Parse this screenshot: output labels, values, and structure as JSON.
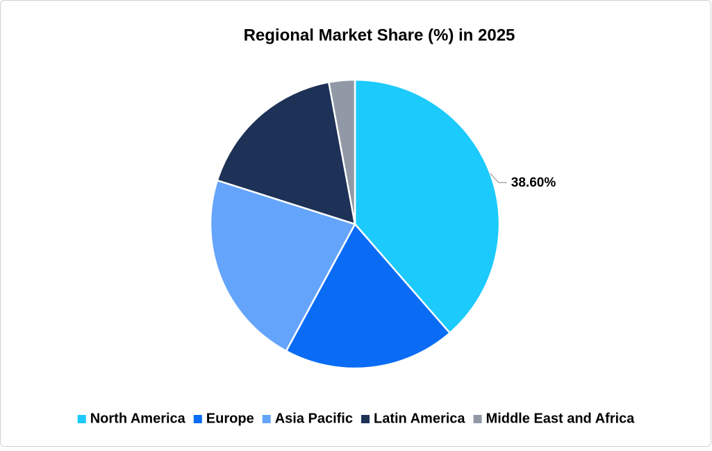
{
  "chart_data": {
    "type": "pie",
    "title": "Regional Market Share (%) in 2025",
    "categories": [
      "North America",
      "Europe",
      "Asia Pacific",
      "Latin America",
      "Middle East and Africa"
    ],
    "values": [
      38.6,
      19.3,
      22.0,
      17.2,
      2.9
    ],
    "value_labels": [
      "38.60%",
      null,
      null,
      null,
      null
    ],
    "colors": [
      "#1ccafc",
      "#0a6cf5",
      "#64a4fb",
      "#1e3157",
      "#9198a6"
    ],
    "legend": "bottom"
  }
}
